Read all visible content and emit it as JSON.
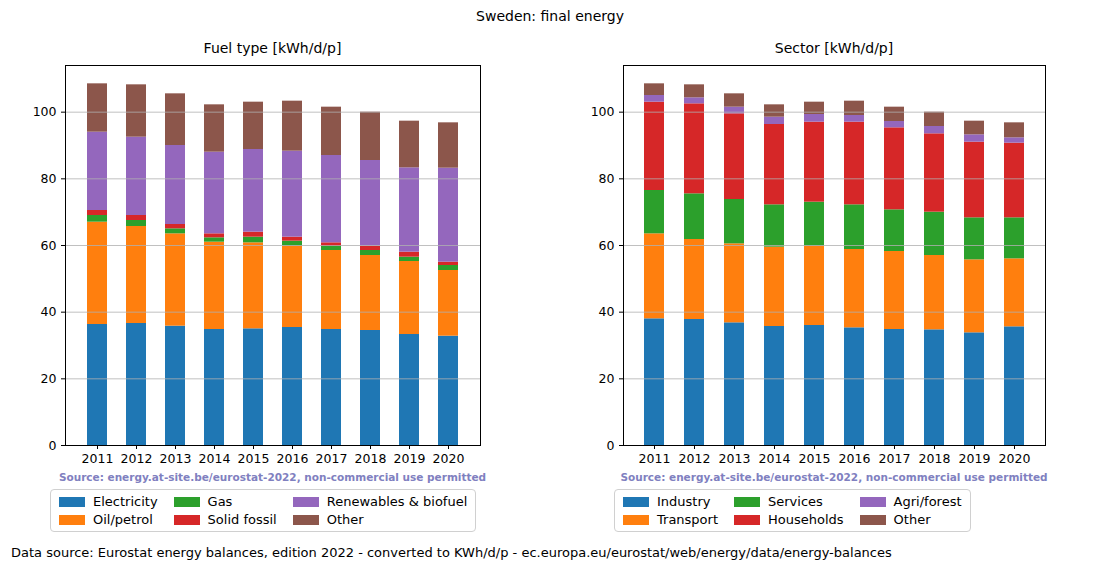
{
  "title": "Sweden: final energy",
  "caption": "Data source: Eurostat energy balances, edition 2022 - converted to KWh/d/p - ec.europa.eu/eurostat/web/energy/data/energy-balances",
  "chart_data": [
    {
      "type": "bar",
      "title": "Fuel type [kWh/d/p]",
      "stacked": true,
      "grid": true,
      "legend": "below",
      "annotations": [
        "Source: energy.at-site.be/eurostat-2022, non-commercial use permitted"
      ],
      "categories": [
        "2011",
        "2012",
        "2013",
        "2014",
        "2015",
        "2016",
        "2017",
        "2018",
        "2019",
        "2020"
      ],
      "ylim": [
        0,
        114
      ],
      "yticks": [
        0,
        20,
        40,
        60,
        80,
        100
      ],
      "series": [
        {
          "name": "Electricity",
          "color": "#1f77b4",
          "values": [
            36.3,
            36.6,
            35.8,
            34.8,
            35.0,
            35.4,
            34.8,
            34.5,
            33.3,
            32.8
          ]
        },
        {
          "name": "Oil/petrol",
          "color": "#ff7f0e",
          "values": [
            30.7,
            29.1,
            27.7,
            26.2,
            25.8,
            24.4,
            23.7,
            22.5,
            21.9,
            19.7
          ]
        },
        {
          "name": "Gas",
          "color": "#2ca02c",
          "values": [
            2.0,
            1.8,
            1.5,
            1.3,
            1.7,
            1.5,
            1.2,
            1.5,
            1.3,
            1.5
          ]
        },
        {
          "name": "Solid fossil",
          "color": "#d62728",
          "values": [
            1.5,
            1.5,
            1.3,
            1.2,
            1.5,
            1.2,
            1.1,
            1.3,
            1.5,
            1.0
          ]
        },
        {
          "name": "Renewables & biofuel",
          "color": "#9467bd",
          "values": [
            23.5,
            23.5,
            23.7,
            24.5,
            24.8,
            25.8,
            26.2,
            25.7,
            25.3,
            28.2
          ]
        },
        {
          "name": "Other",
          "color": "#8c564b",
          "values": [
            14.5,
            15.7,
            15.5,
            14.2,
            14.2,
            15.0,
            14.5,
            14.5,
            14.0,
            13.6
          ]
        }
      ]
    },
    {
      "type": "bar",
      "title": "Sector [kWh/d/p]",
      "stacked": true,
      "grid": true,
      "legend": "below",
      "annotations": [
        "Source: energy.at-site.be/eurostat-2022, non-commercial use permitted"
      ],
      "categories": [
        "2011",
        "2012",
        "2013",
        "2014",
        "2015",
        "2016",
        "2017",
        "2018",
        "2019",
        "2020"
      ],
      "ylim": [
        0,
        114
      ],
      "yticks": [
        0,
        20,
        40,
        60,
        80,
        100
      ],
      "series": [
        {
          "name": "Industry",
          "color": "#1f77b4",
          "values": [
            38.0,
            37.8,
            36.8,
            35.7,
            36.0,
            35.3,
            34.8,
            34.7,
            33.8,
            35.6
          ]
        },
        {
          "name": "Transport",
          "color": "#ff7f0e",
          "values": [
            25.5,
            24.0,
            23.7,
            23.8,
            23.8,
            23.5,
            23.4,
            22.3,
            21.9,
            20.4
          ]
        },
        {
          "name": "Services",
          "color": "#2ca02c",
          "values": [
            13.0,
            13.7,
            13.3,
            12.7,
            13.2,
            13.4,
            12.5,
            13.0,
            12.6,
            12.3
          ]
        },
        {
          "name": "Households",
          "color": "#d62728",
          "values": [
            26.5,
            27.0,
            25.7,
            24.1,
            24.0,
            24.8,
            24.6,
            23.5,
            22.7,
            22.4
          ]
        },
        {
          "name": "Agri/forest",
          "color": "#9467bd",
          "values": [
            2.0,
            1.8,
            2.0,
            2.2,
            2.3,
            2.0,
            1.9,
            2.2,
            2.2,
            1.6
          ]
        },
        {
          "name": "Other",
          "color": "#8c564b",
          "values": [
            3.5,
            3.9,
            4.0,
            3.7,
            3.7,
            4.3,
            4.3,
            4.3,
            4.1,
            4.5
          ]
        }
      ]
    }
  ]
}
